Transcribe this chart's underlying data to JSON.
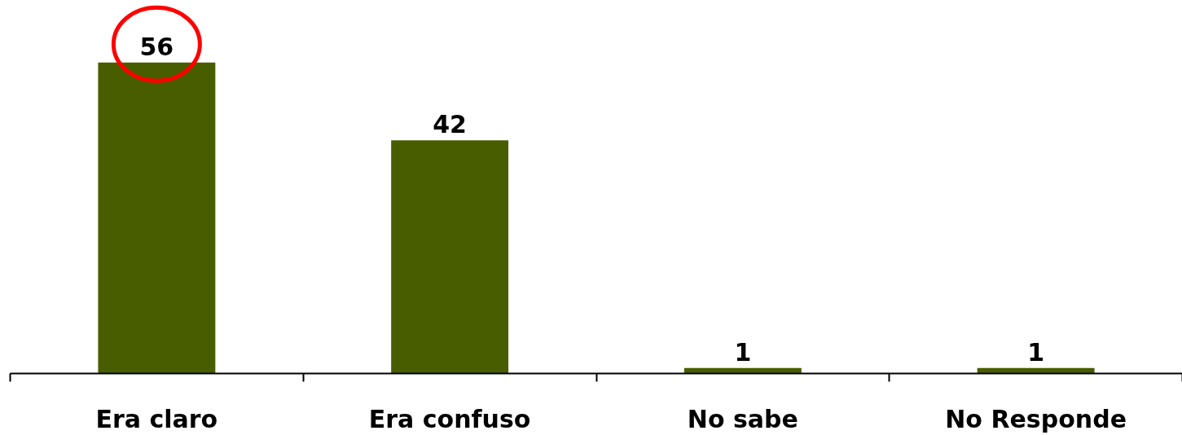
{
  "chart_data": {
    "type": "bar",
    "categories": [
      "Era claro",
      "Era confuso",
      "No sabe",
      "No Responde"
    ],
    "values": [
      56,
      42,
      1,
      1
    ],
    "color": "#485c00",
    "data_labels": true
  }
}
